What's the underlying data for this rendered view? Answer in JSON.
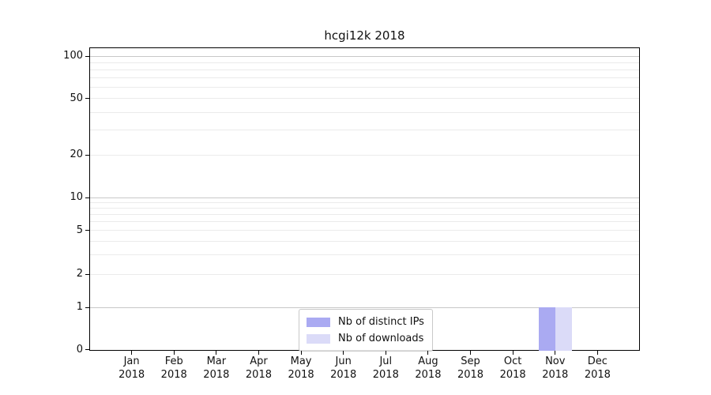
{
  "title": "hcgi12k 2018",
  "legend": {
    "entries": [
      {
        "label": "Nb of distinct IPs",
        "color": "#aaaaf2"
      },
      {
        "label": "Nb of downloads",
        "color": "#dbdbf8"
      }
    ]
  },
  "yaxis": {
    "ticks": [
      {
        "value": 100,
        "label": "100"
      },
      {
        "value": 50,
        "label": "50"
      },
      {
        "value": 20,
        "label": "20"
      },
      {
        "value": 10,
        "label": "10"
      },
      {
        "value": 5,
        "label": "5"
      },
      {
        "value": 2,
        "label": "2"
      },
      {
        "value": 1,
        "label": "1"
      },
      {
        "value": 0,
        "label": "0"
      }
    ]
  },
  "xaxis": {
    "ticks": [
      {
        "month": "Jan",
        "year": "2018"
      },
      {
        "month": "Feb",
        "year": "2018"
      },
      {
        "month": "Mar",
        "year": "2018"
      },
      {
        "month": "Apr",
        "year": "2018"
      },
      {
        "month": "May",
        "year": "2018"
      },
      {
        "month": "Jun",
        "year": "2018"
      },
      {
        "month": "Jul",
        "year": "2018"
      },
      {
        "month": "Aug",
        "year": "2018"
      },
      {
        "month": "Sep",
        "year": "2018"
      },
      {
        "month": "Oct",
        "year": "2018"
      },
      {
        "month": "Nov",
        "year": "2018"
      },
      {
        "month": "Dec",
        "year": "2018"
      }
    ]
  },
  "chart_data": {
    "type": "bar",
    "title": "hcgi12k 2018",
    "categories": [
      "Jan 2018",
      "Feb 2018",
      "Mar 2018",
      "Apr 2018",
      "May 2018",
      "Jun 2018",
      "Jul 2018",
      "Aug 2018",
      "Sep 2018",
      "Oct 2018",
      "Nov 2018",
      "Dec 2018"
    ],
    "series": [
      {
        "name": "Nb of distinct IPs",
        "color": "#aaaaf2",
        "values": [
          0,
          0,
          0,
          0,
          0,
          0,
          0,
          0,
          0,
          0,
          1,
          0
        ]
      },
      {
        "name": "Nb of downloads",
        "color": "#dbdbf8",
        "values": [
          0,
          0,
          0,
          0,
          0,
          0,
          0,
          0,
          0,
          0,
          1,
          0
        ]
      }
    ],
    "yscale": "symlog",
    "ylim": [
      0,
      110
    ],
    "yticks": [
      0,
      1,
      2,
      5,
      10,
      20,
      50,
      100
    ],
    "grid": "horizontal major+minor",
    "legend_position": "lower center"
  }
}
